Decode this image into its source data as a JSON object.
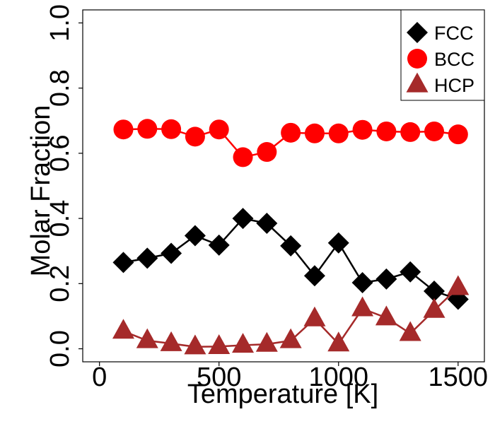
{
  "chart_data": {
    "type": "line",
    "title": "",
    "xlabel": "Temperature [K]",
    "ylabel": "Molar Fraction",
    "xlim": [
      -70,
      1610
    ],
    "ylim": [
      -0.04,
      1.04
    ],
    "x_ticks": [
      0,
      500,
      1000,
      1500
    ],
    "y_ticks": [
      0.0,
      0.2,
      0.4,
      0.6,
      0.8,
      1.0
    ],
    "y_tick_labels": [
      "0.0",
      "0.2",
      "0.4",
      "0.6",
      "0.8",
      "1.0"
    ],
    "grid": false,
    "legend_position": "top-right",
    "x": [
      100,
      200,
      300,
      400,
      500,
      600,
      700,
      800,
      900,
      1000,
      1100,
      1200,
      1300,
      1400,
      1500
    ],
    "series": [
      {
        "name": "FCC",
        "color": "#000000",
        "marker": "diamond",
        "values": [
          0.265,
          0.278,
          0.293,
          0.347,
          0.318,
          0.4,
          0.385,
          0.316,
          0.224,
          0.325,
          0.203,
          0.214,
          0.236,
          0.177,
          0.152
        ]
      },
      {
        "name": "BCC",
        "color": "#ff0000",
        "marker": "circle",
        "values": [
          0.673,
          0.675,
          0.674,
          0.651,
          0.673,
          0.588,
          0.604,
          0.663,
          0.661,
          0.661,
          0.672,
          0.667,
          0.665,
          0.667,
          0.658
        ]
      },
      {
        "name": "HCP",
        "color": "#a52a2a",
        "marker": "triangle",
        "values": [
          0.054,
          0.025,
          0.016,
          0.006,
          0.007,
          0.011,
          0.014,
          0.025,
          0.092,
          0.015,
          0.123,
          0.095,
          0.047,
          0.118,
          0.188
        ]
      }
    ]
  }
}
